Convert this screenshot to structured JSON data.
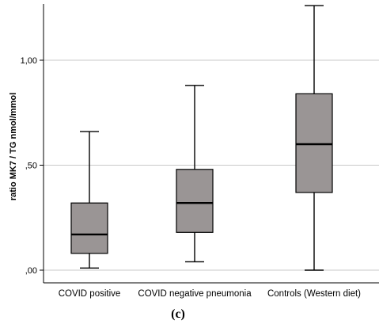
{
  "chart_data": {
    "type": "boxplot",
    "ylabel": "ratio MK7 / TG  nmol/mmol",
    "ylim": [
      0,
      1.27
    ],
    "yticks": [
      0.0,
      0.5,
      1.0
    ],
    "ytick_labels": [
      ",00",
      ",50",
      "1,00"
    ],
    "grid": "horizontal",
    "categories": [
      "COVID positive",
      "COVID negative pneumonia",
      "Controls (Western diet)"
    ],
    "boxes": [
      {
        "whisker_low": 0.01,
        "q1": 0.08,
        "median": 0.17,
        "q3": 0.32,
        "whisker_high": 0.66
      },
      {
        "whisker_low": 0.04,
        "q1": 0.18,
        "median": 0.32,
        "q3": 0.48,
        "whisker_high": 0.88
      },
      {
        "whisker_low": 0.0,
        "q1": 0.37,
        "median": 0.6,
        "q3": 0.84,
        "whisker_high": 1.26
      }
    ],
    "box_color": "#9a9595",
    "caption": "(c)"
  }
}
